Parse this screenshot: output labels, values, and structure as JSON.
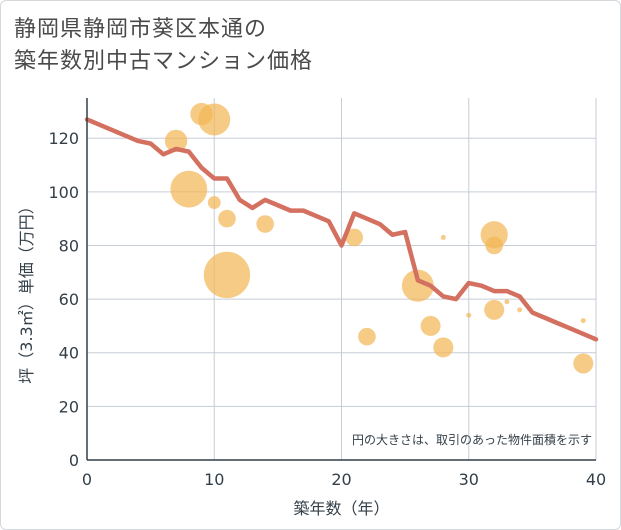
{
  "title_line1": "静岡県静岡市葵区本通の",
  "title_line2": "築年数別中古マンション価格",
  "chart_data": {
    "type": "scatter",
    "xlabel": "築年数（年）",
    "ylabel": "坪（3.3㎡）単価（万円）",
    "xlim": [
      0,
      40
    ],
    "ylim": [
      0,
      135
    ],
    "xticks": [
      0,
      10,
      20,
      30,
      40
    ],
    "yticks": [
      0,
      20,
      40,
      60,
      80,
      100,
      120
    ],
    "note": "円の大きさは、取引のあった物件面積を示す",
    "colors": {
      "bubble": "#f3b756",
      "line": "#d47060",
      "grid": "#c5ced6",
      "axis": "#333f48"
    },
    "bubbles": [
      {
        "x": 7,
        "y": 119,
        "size": 3
      },
      {
        "x": 8,
        "y": 101,
        "size": 6
      },
      {
        "x": 9,
        "y": 129,
        "size": 3
      },
      {
        "x": 10,
        "y": 127,
        "size": 5
      },
      {
        "x": 10,
        "y": 96,
        "size": 1
      },
      {
        "x": 11,
        "y": 90,
        "size": 2
      },
      {
        "x": 11,
        "y": 69,
        "size": 8
      },
      {
        "x": 14,
        "y": 88,
        "size": 2
      },
      {
        "x": 21,
        "y": 83,
        "size": 2
      },
      {
        "x": 22,
        "y": 46,
        "size": 2
      },
      {
        "x": 26,
        "y": 65,
        "size": 5
      },
      {
        "x": 27,
        "y": 50,
        "size": 2.5
      },
      {
        "x": 28,
        "y": 42,
        "size": 2.5
      },
      {
        "x": 28,
        "y": 83,
        "size": 0.3
      },
      {
        "x": 30,
        "y": 54,
        "size": 0.3
      },
      {
        "x": 32,
        "y": 84,
        "size": 4
      },
      {
        "x": 32,
        "y": 80,
        "size": 2
      },
      {
        "x": 32,
        "y": 56,
        "size": 2.5
      },
      {
        "x": 33,
        "y": 59,
        "size": 0.3
      },
      {
        "x": 34,
        "y": 56,
        "size": 0.3
      },
      {
        "x": 39,
        "y": 52,
        "size": 0.3
      },
      {
        "x": 39,
        "y": 36,
        "size": 2.5
      }
    ],
    "trend": {
      "x": [
        0,
        1,
        2,
        3,
        4,
        5,
        6,
        7,
        8,
        9,
        10,
        11,
        12,
        13,
        14,
        15,
        16,
        17,
        18,
        19,
        20,
        21,
        22,
        23,
        24,
        25,
        26,
        27,
        28,
        29,
        30,
        31,
        32,
        33,
        34,
        35,
        36,
        37,
        38,
        39,
        40
      ],
      "y": [
        127,
        125,
        123,
        121,
        119,
        118,
        114,
        116,
        115,
        109,
        105,
        105,
        97,
        94,
        97,
        95,
        93,
        93,
        91,
        89,
        80,
        92,
        90,
        88,
        84,
        85,
        67,
        65,
        61,
        60,
        66,
        65,
        63,
        63,
        61,
        55,
        53,
        51,
        49,
        47,
        45
      ]
    }
  }
}
